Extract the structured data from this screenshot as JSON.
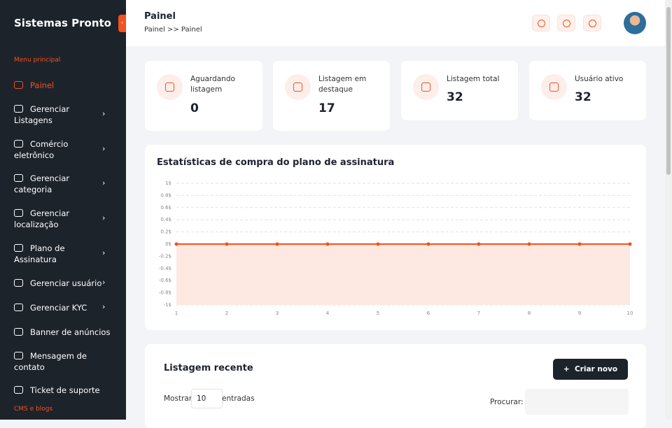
{
  "sidebar": {
    "brand": "Sistemas Pronto",
    "section": "Menu principal",
    "items": [
      "Painel",
      "Gerenciar Listagens",
      "Comércio eletrônico",
      "Gerenciar categoria",
      "Gerenciar localização",
      "Plano de Assinatura",
      "Gerenciar usuário",
      "Gerenciar KYC",
      "Banner de anúncios",
      "Mensagem de contato",
      "Ticket de suporte"
    ],
    "section2": "CMS e blogs"
  },
  "header": {
    "title": "Painel",
    "breadcrumb": "Painel >> Painel"
  },
  "stats": [
    {
      "label": "Aguardando listagem",
      "value": "0"
    },
    {
      "label": "Listagem em destaque",
      "value": "17"
    },
    {
      "label": "Listagem total",
      "value": "32"
    },
    {
      "label": "Usuário ativo",
      "value": "32"
    }
  ],
  "chart_data": {
    "type": "area",
    "title": "Estatísticas de compra do plano de assinatura",
    "x": [
      1,
      2,
      3,
      4,
      5,
      6,
      7,
      8,
      9,
      10
    ],
    "values": [
      0,
      0,
      0,
      0,
      0,
      0,
      0,
      0,
      0,
      0
    ],
    "color": "#f4511e",
    "fill": "#fde9e2",
    "xlim": [
      1,
      10
    ],
    "xticks": [
      1,
      2,
      3,
      4,
      5,
      6,
      7,
      8,
      9,
      10
    ],
    "ylim": [
      -1,
      1
    ],
    "yticks": [
      {
        "value": 1,
        "label": "1$"
      },
      {
        "value": 0.8,
        "label": "0.8$"
      },
      {
        "value": 0.6,
        "label": "0.6$"
      },
      {
        "value": 0.4,
        "label": "0.4$"
      },
      {
        "value": 0.2,
        "label": "0.2$"
      },
      {
        "value": 0,
        "label": "0$"
      },
      {
        "value": -0.2,
        "label": "-0.2$"
      },
      {
        "value": -0.4,
        "label": "-0.4$"
      },
      {
        "value": -0.6,
        "label": "-0.6$"
      },
      {
        "value": -0.8,
        "label": "-0.8$"
      },
      {
        "value": -1,
        "label": "-1$"
      }
    ],
    "grid": true
  },
  "recent": {
    "title": "Listagem recente",
    "button": "Criar novo",
    "show": "Mostrar",
    "page_size": "10",
    "entries": "entradas",
    "search": "Procurar:"
  }
}
